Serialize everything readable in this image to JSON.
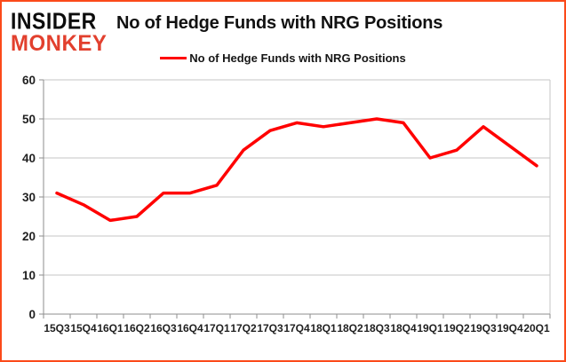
{
  "logo": {
    "line1": "INSIDER",
    "line2": "MONKEY"
  },
  "header": {
    "title": "No of Hedge Funds with NRG Positions"
  },
  "legend": {
    "label": "No of Hedge Funds with NRG Positions"
  },
  "colors": {
    "accent_border": "#fb4a1a",
    "logo_black": "#0c0c0c",
    "logo_red": "#e2402e",
    "series": "#ff0000",
    "grid": "#c6c6c6",
    "axis": "#8e8e8e",
    "tick_text": "#1f1f1f"
  },
  "chart_data": {
    "type": "line",
    "title": "No of Hedge Funds with NRG Positions",
    "categories": [
      "15Q3",
      "15Q4",
      "16Q1",
      "16Q2",
      "16Q3",
      "16Q4",
      "17Q1",
      "17Q2",
      "17Q3",
      "17Q4",
      "18Q1",
      "18Q2",
      "18Q3",
      "18Q4",
      "19Q1",
      "19Q2",
      "19Q3",
      "19Q4",
      "20Q1"
    ],
    "series": [
      {
        "name": "No of Hedge Funds with NRG Positions",
        "color": "#ff0000",
        "values": [
          31,
          28,
          24,
          25,
          31,
          31,
          33,
          42,
          47,
          49,
          48,
          49,
          50,
          49,
          40,
          42,
          48,
          43,
          38
        ]
      }
    ],
    "xlabel": "",
    "ylabel": "",
    "ylim": [
      0,
      60
    ],
    "yticks": [
      0,
      10,
      20,
      30,
      40,
      50,
      60
    ],
    "grid": true,
    "legend_position": "top-center"
  }
}
